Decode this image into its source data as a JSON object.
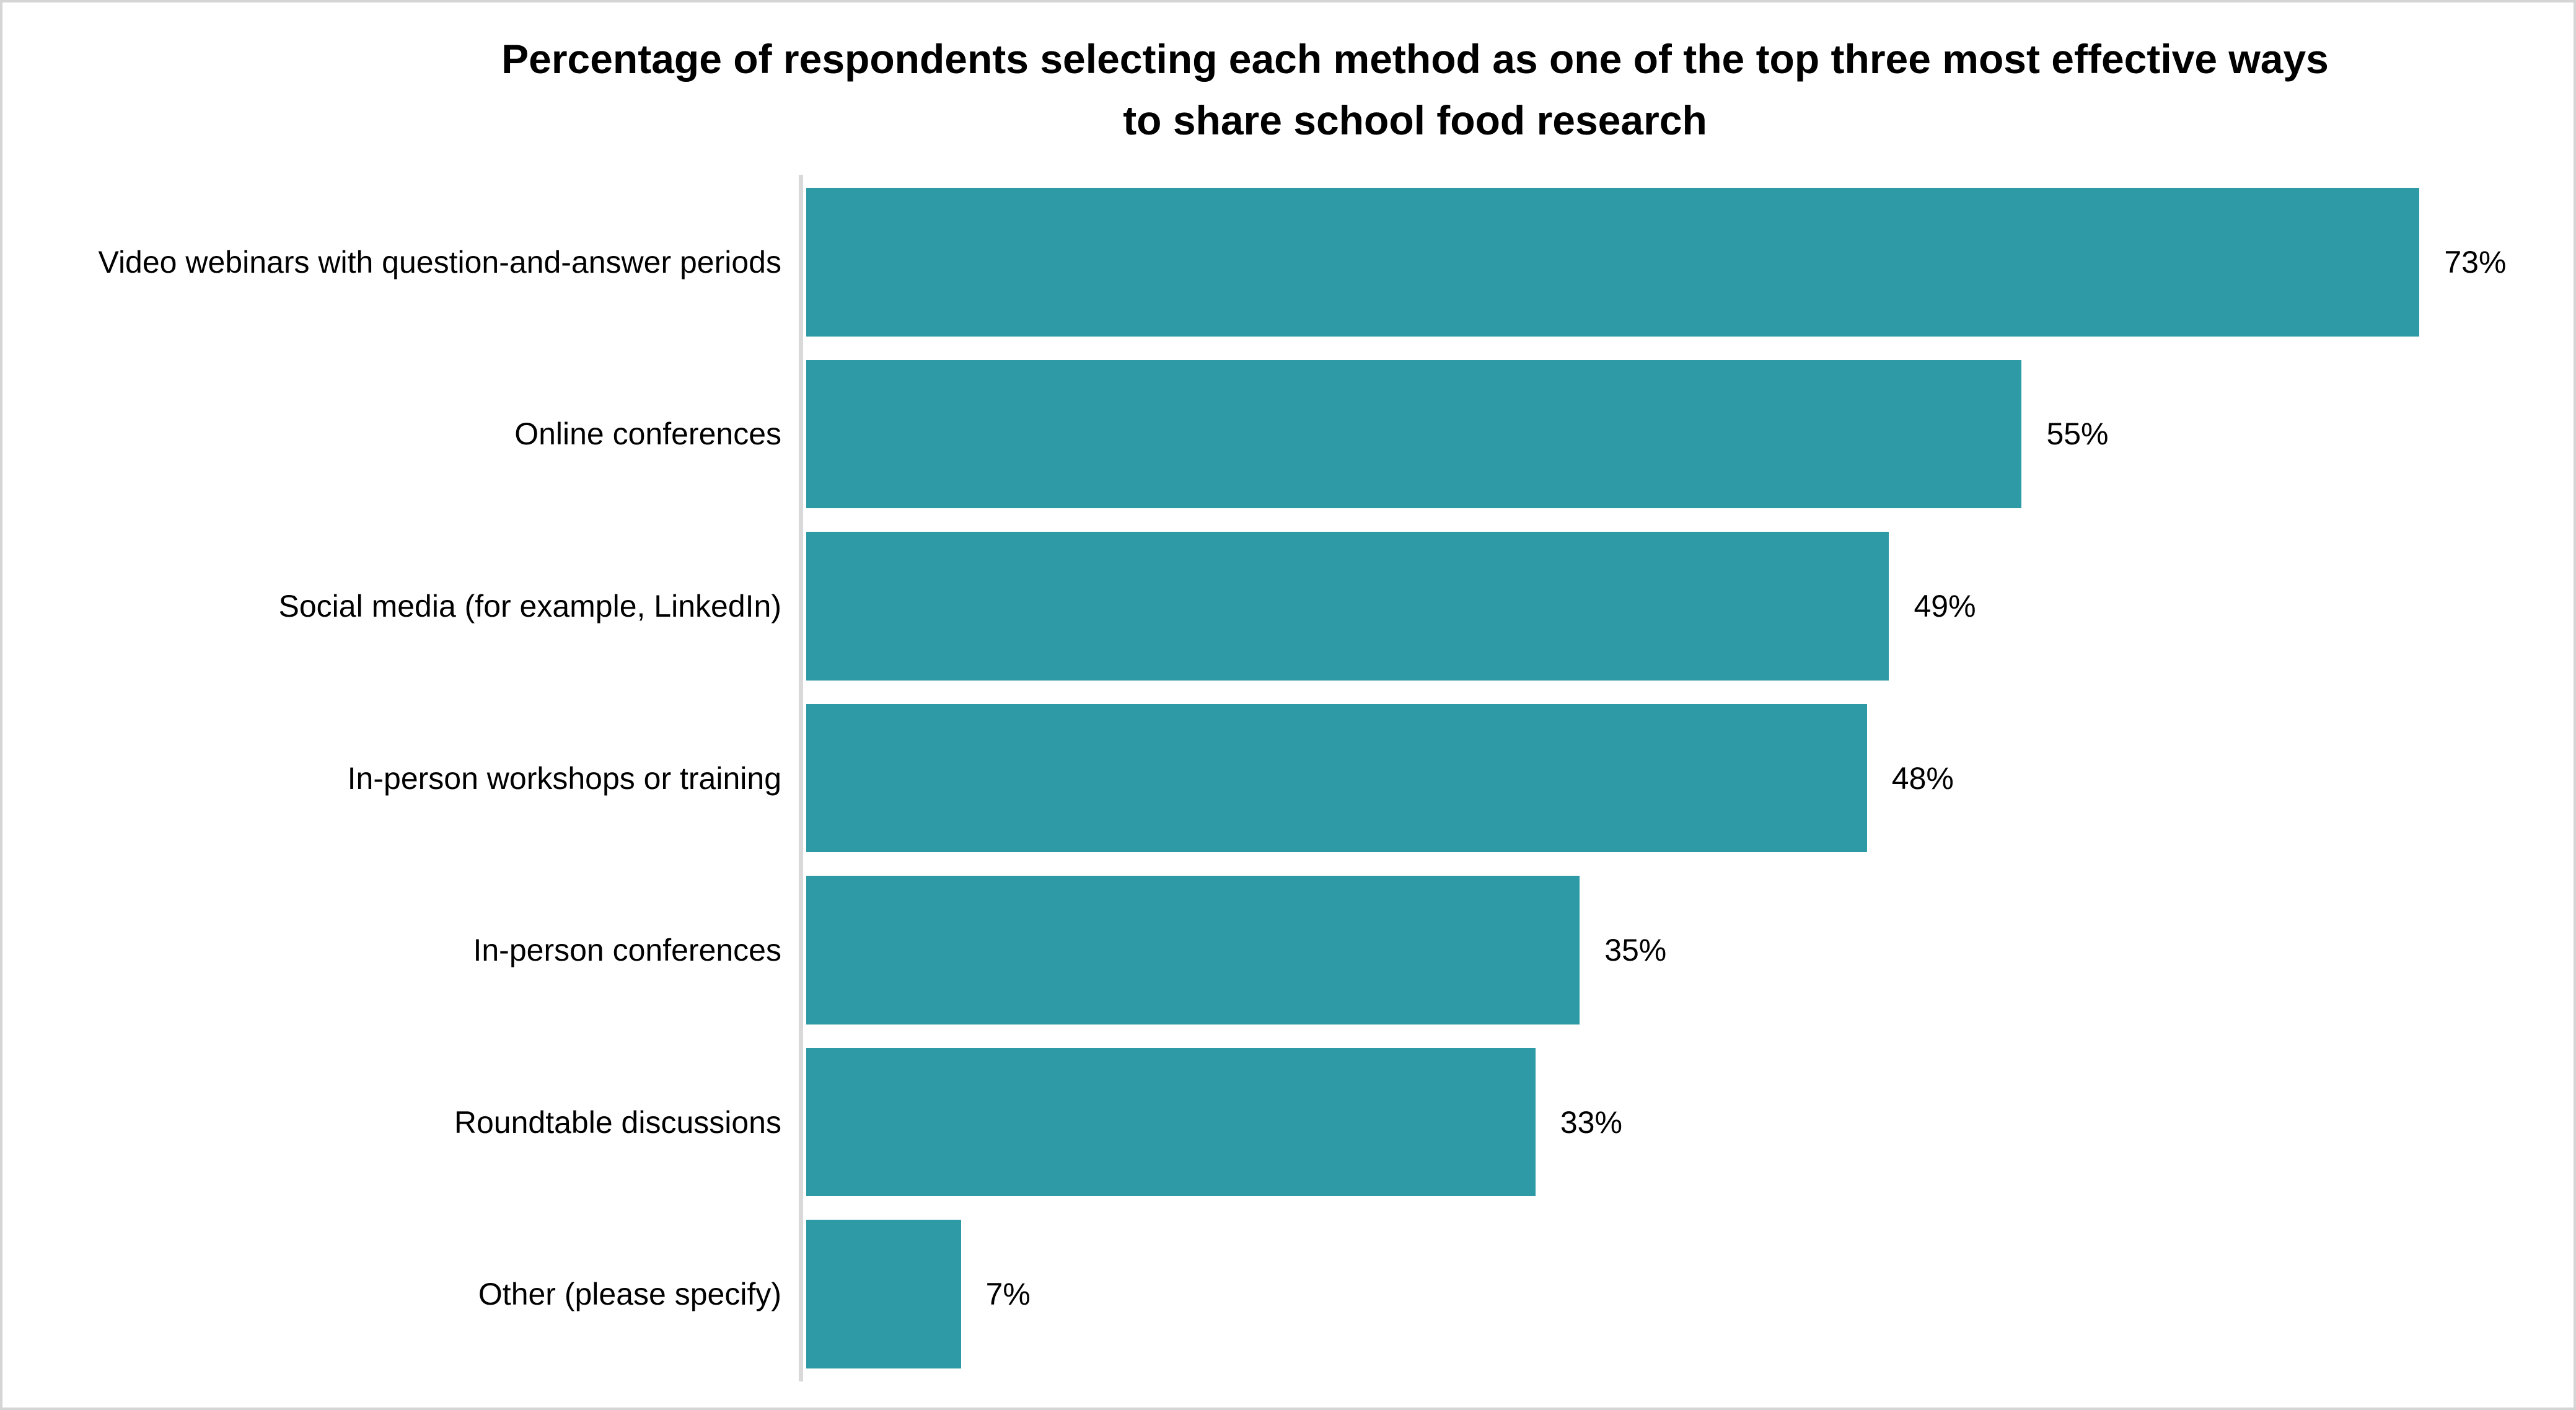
{
  "title_lines": {
    "line1": "Percentage of respondents selecting each method as one of the top three most effective ways",
    "line2": "to share school food research"
  },
  "colors": {
    "bar": "#2D9AA6",
    "axis_line": "#D9D9D9",
    "frame_border": "#D5D5D5",
    "text": "#000000",
    "background": "#FFFFFF"
  },
  "chart_data": {
    "type": "bar",
    "orientation": "horizontal",
    "title": "Percentage of respondents selecting each method as one of the top three most effective ways to share school food research",
    "categories": [
      "Video webinars with question-and-answer periods",
      "Online conferences",
      "Social media (for example, LinkedIn)",
      "In-person workshops or training",
      "In-person conferences",
      "Roundtable discussions",
      "Other (please specify)"
    ],
    "values": [
      73,
      55,
      49,
      48,
      35,
      33,
      7
    ],
    "value_labels": [
      "73%",
      "55%",
      "49%",
      "48%",
      "35%",
      "33%",
      "7%"
    ],
    "xlabel": "",
    "ylabel": "",
    "xlim": [
      0,
      80
    ],
    "grid": false,
    "legend": false,
    "data_labels_position": "outside-end"
  }
}
